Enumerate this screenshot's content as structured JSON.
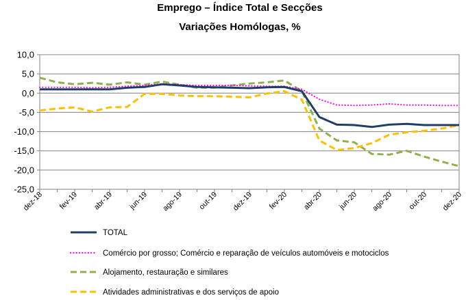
{
  "chart_data": {
    "type": "line",
    "title": "Emprego – Índice Total e Secções",
    "subtitle": "Variações Homólogas, %",
    "xlabel": "",
    "ylabel": "",
    "ylim": [
      -25,
      10
    ],
    "yticks": [
      "10,0",
      "5,0",
      "0,0",
      "-5,0",
      "-10,0",
      "-15,0",
      "-20,0",
      "-25,0"
    ],
    "ytick_values": [
      10,
      5,
      0,
      -5,
      -10,
      -15,
      -20,
      -25
    ],
    "x": [
      "dez-18",
      "jan-19",
      "fev-19",
      "mar-19",
      "abr-19",
      "mai-19",
      "jun-19",
      "jul-19",
      "ago-19",
      "set-19",
      "out-19",
      "nov-19",
      "dez-19",
      "jan-20",
      "fev-20",
      "mar-20",
      "abr-20",
      "mai-20",
      "jun-20",
      "jul-20",
      "ago-20",
      "set-20",
      "out-20",
      "nov-20",
      "dez-20"
    ],
    "xtick_labels": [
      "dez-18",
      "fev-19",
      "abr-19",
      "jun-19",
      "ago-19",
      "out-19",
      "dez-19",
      "fev-20",
      "abr-20",
      "jun-20",
      "ago-20",
      "out-20",
      "dez-20"
    ],
    "grid": "horizontal",
    "legend_position": "bottom",
    "series": [
      {
        "name": "TOTAL",
        "color": "#1f3d66",
        "style": "solid",
        "values": [
          1.0,
          1.0,
          1.0,
          1.0,
          1.0,
          1.4,
          1.6,
          2.3,
          2.0,
          1.6,
          1.5,
          1.4,
          1.3,
          1.5,
          1.6,
          0.5,
          -6.2,
          -8.2,
          -8.3,
          -8.8,
          -8.2,
          -8.0,
          -8.3,
          -8.3,
          -8.3
        ]
      },
      {
        "name": "Comércio por grosso; Comércio e reparação de veículos automóveis e motociclos",
        "color": "#ff00ff",
        "style": "dotted",
        "values": [
          1.5,
          1.5,
          1.5,
          1.4,
          1.5,
          1.8,
          2.0,
          2.4,
          2.2,
          2.0,
          2.0,
          2.0,
          1.9,
          1.8,
          1.8,
          1.0,
          -1.6,
          -3.1,
          -3.2,
          -3.1,
          -2.8,
          -3.1,
          -3.1,
          -3.2,
          -3.2
        ]
      },
      {
        "name": "Alojamento, restauração e similares",
        "color": "#8fb04b",
        "style": "dashed",
        "values": [
          4.0,
          2.8,
          2.3,
          2.7,
          2.2,
          2.8,
          2.2,
          3.0,
          2.2,
          1.4,
          1.4,
          2.0,
          2.5,
          2.8,
          3.3,
          0.5,
          -9.2,
          -12.3,
          -12.8,
          -15.8,
          -16.0,
          -15.0,
          -16.5,
          -17.8,
          -19.0
        ]
      },
      {
        "name": "Atividades administrativas e dos serviços de apoio",
        "color": "#ffc000",
        "style": "dashed",
        "values": [
          -4.5,
          -4.0,
          -3.7,
          -4.8,
          -3.7,
          -3.6,
          -0.2,
          -0.2,
          -0.6,
          -0.8,
          -0.8,
          -0.9,
          -1.1,
          -0.1,
          0.5,
          -1.7,
          -12.3,
          -14.8,
          -14.3,
          -13.0,
          -10.8,
          -10.2,
          -9.8,
          -9.2,
          -8.3
        ]
      }
    ]
  }
}
